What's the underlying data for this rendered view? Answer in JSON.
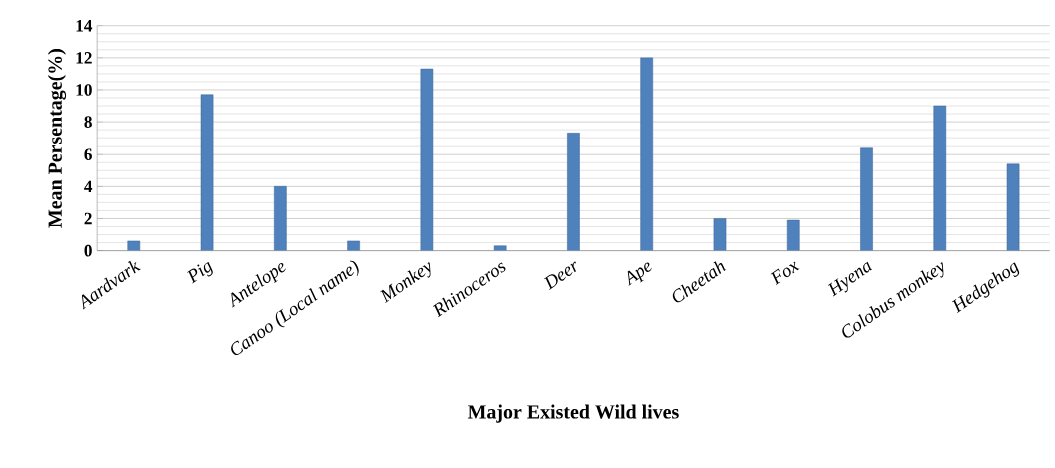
{
  "chart_data": {
    "type": "bar",
    "xlabel": "Major Existed  Wild lives",
    "ylabel": "Mean Persentage(%)",
    "categories": [
      "Aardvark",
      "Pig",
      "Antelope",
      "Canoo (Local name)",
      "Monkey",
      "Rhinoceros",
      "Deer",
      "Ape",
      "Cheetah",
      "Fox",
      "Hyena",
      "Colobus monkey",
      "Hedgehog"
    ],
    "values": [
      0.6,
      9.7,
      4.0,
      0.6,
      11.3,
      0.3,
      7.3,
      12.0,
      2.0,
      1.9,
      6.4,
      9.0,
      5.4
    ],
    "color": "#4f81bd",
    "ylim": [
      0,
      14
    ],
    "yticks": [
      0,
      2,
      4,
      6,
      8,
      10,
      12,
      14
    ],
    "grid": "y"
  }
}
